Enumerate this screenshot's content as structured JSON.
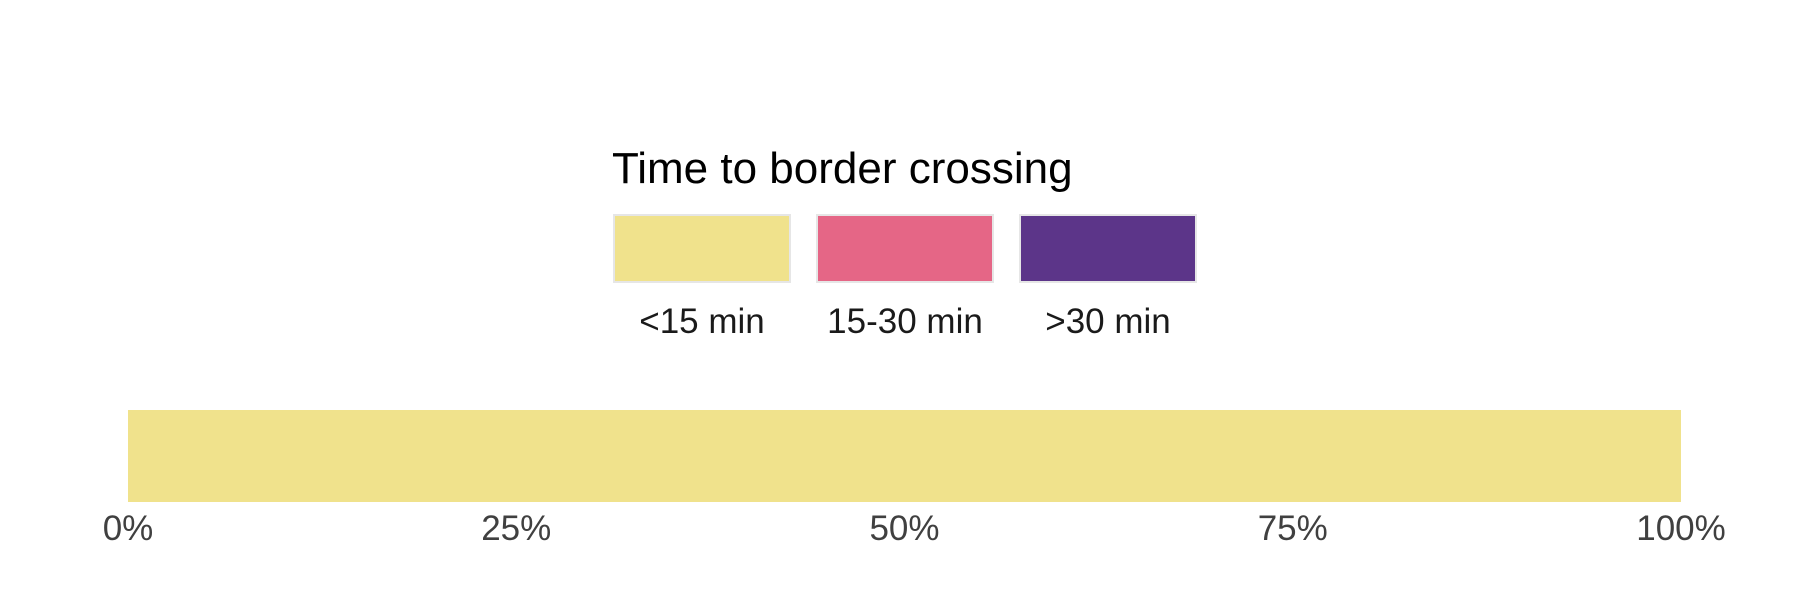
{
  "chart_data": {
    "type": "bar",
    "orientation": "horizontal-stacked",
    "legend": {
      "title": "Time to border crossing",
      "placement": "top-center",
      "entries": [
        {
          "label": "<15 min",
          "color": "#f0e28c"
        },
        {
          "label": "15-30 min",
          "color": "#e56686"
        },
        {
          "label": ">30 min",
          "color": "#5c3589"
        }
      ]
    },
    "series": [
      {
        "name": "<15 min",
        "values": [
          100
        ]
      },
      {
        "name": "15-30 min",
        "values": [
          0
        ]
      },
      {
        "name": ">30 min",
        "values": [
          0
        ]
      }
    ],
    "xlim": [
      0,
      100
    ],
    "x_ticks": [
      "0%",
      "25%",
      "50%",
      "75%",
      "100%"
    ],
    "grid": false
  }
}
